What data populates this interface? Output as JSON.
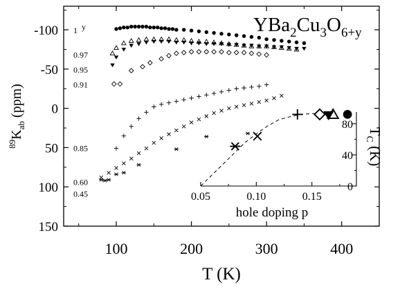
{
  "chart_data": {
    "main": {
      "type": "scatter",
      "title_parts": {
        "base": "YBa",
        "s1": "2",
        "mid1": "Cu",
        "s2": "3",
        "mid2": "O",
        "s3": "6+y"
      },
      "xlabel": "T (K)",
      "ylabel_parts": {
        "sup": "89",
        "base": "K",
        "sub": "ab",
        "unit": " (ppm)"
      },
      "xlim": [
        30,
        450
      ],
      "ylim": [
        -130,
        150
      ],
      "y_inverted": true,
      "xticks": [
        100,
        200,
        300,
        400
      ],
      "yticks": [
        -100,
        -50,
        0,
        50,
        100,
        150
      ],
      "ytick_labels": [
        "-100",
        "-50",
        "0",
        "50",
        "100",
        "150"
      ],
      "legend_header": "y",
      "series": [
        {
          "y_label": "1",
          "marker": "filled-circle",
          "label_y": -100,
          "x": [
            100,
            105,
            110,
            115,
            120,
            125,
            130,
            135,
            140,
            145,
            150,
            155,
            160,
            165,
            170,
            175,
            180,
            190,
            200,
            210,
            220,
            230,
            240,
            250,
            260,
            270,
            280,
            290,
            300,
            310,
            320,
            330,
            340,
            350
          ],
          "y": [
            -101,
            -102,
            -103,
            -103,
            -104,
            -104,
            -104,
            -104,
            -104,
            -103,
            -103,
            -103,
            -102,
            -102,
            -101,
            -101,
            -100,
            -100,
            -99,
            -98,
            -97,
            -96,
            -95,
            -94,
            -93,
            -92,
            -91,
            -90,
            -88,
            -87,
            -86,
            -85,
            -84,
            -83
          ]
        },
        {
          "y_label": "0.97",
          "marker": "open-triangle",
          "label_y": -69,
          "x": [
            95,
            100,
            110,
            120,
            130,
            140,
            150,
            160,
            170,
            180,
            190,
            200,
            210,
            220,
            230,
            240,
            250,
            260,
            270,
            280,
            290,
            300,
            310,
            320,
            330,
            340
          ],
          "y": [
            -70,
            -77,
            -83,
            -86,
            -87,
            -88,
            -88,
            -88,
            -88,
            -87,
            -87,
            -86,
            -85,
            -85,
            -84,
            -83,
            -82,
            -81,
            -80,
            -79,
            -79,
            -79,
            -78,
            -77,
            -76,
            -75
          ]
        },
        {
          "y_label": "0.95",
          "marker": "filled-down-triangle",
          "label_y": -50,
          "x": [
            95,
            100,
            110,
            120,
            130,
            140,
            150,
            160,
            170,
            180,
            190,
            200,
            210,
            220,
            230,
            240,
            250,
            260,
            270,
            280,
            290,
            300,
            310,
            320,
            330,
            340,
            350
          ],
          "y": [
            -55,
            -65,
            -75,
            -80,
            -82,
            -84,
            -85,
            -85,
            -85,
            -84,
            -84,
            -83,
            -83,
            -82,
            -82,
            -82,
            -81,
            -81,
            -80,
            -80,
            -79,
            -79,
            -78,
            -78,
            -77,
            -76,
            -76
          ]
        },
        {
          "y_label": "0.91",
          "marker": "open-diamond",
          "label_y": -31,
          "x": [
            97,
            105,
            120,
            135,
            145,
            160,
            170,
            180,
            190,
            200,
            210,
            220,
            230,
            240,
            250,
            260,
            270,
            280,
            290,
            300
          ],
          "y": [
            -31,
            -31,
            -48,
            -53,
            -58,
            -63,
            -67,
            -70,
            -71,
            -72,
            -72,
            -72,
            -72,
            -72,
            -71,
            -71,
            -71,
            -70,
            -69,
            -68
          ]
        },
        {
          "y_label": "0.85",
          "marker": "plus",
          "label_y": 50,
          "x": [
            100,
            110,
            120,
            130,
            140,
            150,
            160,
            170,
            180,
            190,
            200,
            210,
            220,
            230,
            240,
            250,
            260,
            270,
            280,
            290,
            300
          ],
          "y": [
            51,
            35,
            23,
            13,
            5,
            -2,
            -5,
            -7,
            -9,
            -11,
            -13,
            -15,
            -17,
            -19,
            -21,
            -23,
            -25,
            -26,
            -27,
            -28,
            -30
          ]
        },
        {
          "y_label": "0.60",
          "marker": "cross",
          "label_y": 93,
          "x": [
            80,
            90,
            100,
            110,
            120,
            130,
            140,
            150,
            160,
            170,
            180,
            190,
            200,
            210,
            220,
            230,
            240,
            250,
            260,
            270,
            280,
            290,
            300,
            310,
            320
          ],
          "y": [
            88,
            82,
            76,
            70,
            64,
            57,
            51,
            44,
            38,
            33,
            28,
            23,
            18,
            14,
            10,
            6,
            3,
            0,
            -2,
            -4,
            -6,
            -8,
            -10,
            -13,
            -16
          ]
        },
        {
          "y_label": "0.45",
          "marker": "asterisk",
          "label_y": 108,
          "x": [
            80,
            85,
            90,
            100,
            110,
            130,
            180,
            220,
            275
          ],
          "y": [
            91,
            92,
            91,
            84,
            82,
            72,
            52,
            36,
            32
          ]
        }
      ]
    },
    "inset": {
      "type": "scatter",
      "xlabel": "hole doping p",
      "ylabel_parts": {
        "base": "T",
        "sub": "C",
        "unit": " (K)"
      },
      "xlim": [
        0.05,
        0.19
      ],
      "ylim": [
        0,
        95
      ],
      "xticks": [
        0.05,
        0.1,
        0.15
      ],
      "xtick_labels": [
        "0.05",
        "0.10",
        "0.15"
      ],
      "minor_xticks": [
        0.075,
        0.125,
        0.175
      ],
      "yticks": [
        0,
        40,
        80
      ],
      "ytick_labels": [
        "0",
        "40",
        "80"
      ],
      "points": [
        {
          "marker": "filled-circle",
          "p": 0.182,
          "tc": 92
        },
        {
          "marker": "open-triangle",
          "p": 0.169,
          "tc": 92
        },
        {
          "marker": "filled-down-triangle",
          "p": 0.165,
          "tc": 91
        },
        {
          "marker": "open-diamond",
          "p": 0.157,
          "tc": 92
        },
        {
          "marker": "plus",
          "p": 0.137,
          "tc": 92
        },
        {
          "marker": "cross",
          "p": 0.101,
          "tc": 64
        },
        {
          "marker": "asterisk",
          "p": 0.081,
          "tc": 51
        }
      ],
      "curve": {
        "style": "dashed",
        "p": [
          0.05,
          0.06,
          0.07,
          0.08,
          0.09,
          0.1,
          0.11,
          0.12,
          0.13,
          0.14,
          0.15,
          0.16
        ],
        "tc": [
          0,
          14,
          28,
          42,
          56,
          67,
          77,
          85,
          89,
          92,
          93,
          93
        ]
      }
    }
  }
}
